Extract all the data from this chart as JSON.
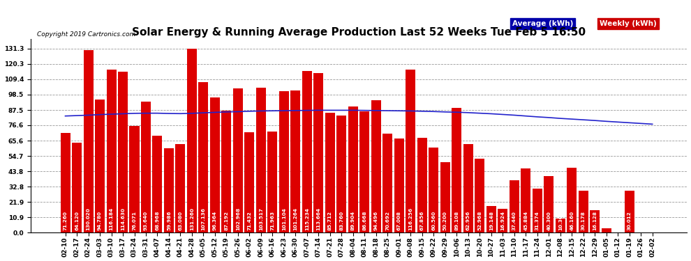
{
  "title": "Solar Energy & Running Average Production Last 52 Weeks Tue Feb 5 16:50",
  "copyright": "Copyright 2019 Cartronics.com",
  "legend_avg": "Average (kWh)",
  "legend_weekly": "Weekly (kWh)",
  "yticks": [
    0.0,
    10.9,
    21.9,
    32.8,
    43.8,
    54.7,
    65.6,
    76.6,
    87.5,
    98.5,
    109.4,
    120.3,
    131.3
  ],
  "ylim": [
    0,
    138
  ],
  "bar_color": "#dd0000",
  "avg_line_color": "#2222cc",
  "background_color": "#ffffff",
  "plot_bg_color": "#ffffff",
  "grid_color": "#999999",
  "title_fontsize": 11,
  "tick_fontsize": 6.5,
  "label_fontsize": 5.2,
  "categories": [
    "02-10",
    "02-17",
    "02-24",
    "03-03",
    "03-10",
    "03-17",
    "03-24",
    "03-31",
    "04-07",
    "04-14",
    "04-21",
    "04-28",
    "05-05",
    "05-12",
    "05-19",
    "05-26",
    "06-02",
    "06-09",
    "06-16",
    "06-23",
    "06-30",
    "07-07",
    "07-14",
    "07-21",
    "07-28",
    "08-04",
    "08-11",
    "08-18",
    "08-25",
    "09-01",
    "09-08",
    "09-15",
    "09-22",
    "09-29",
    "10-06",
    "10-13",
    "10-20",
    "10-27",
    "11-03",
    "11-10",
    "11-17",
    "11-24",
    "12-01",
    "12-08",
    "12-15",
    "12-22",
    "12-29",
    "01-05",
    "01-12",
    "01-19",
    "01-26",
    "02-02"
  ],
  "weekly_values": [
    71.26,
    64.12,
    130.02,
    94.78,
    116.184,
    114.63,
    76.071,
    93.64,
    68.968,
    59.986,
    63.08,
    131.26,
    107.136,
    96.364,
    87.192,
    102.968,
    71.432,
    103.517,
    71.963,
    101.104,
    101.264,
    115.234,
    113.664,
    85.712,
    83.76,
    89.904,
    86.668,
    94.496,
    70.692,
    67.008,
    116.256,
    67.856,
    60.56,
    50.2,
    89.108,
    62.956,
    52.968,
    19.148,
    16.924,
    37.44,
    45.884,
    31.374,
    40.3,
    10.308,
    46.16,
    30.178,
    16.128,
    3.012,
    0.0,
    30.012,
    0.0,
    0.0
  ],
  "avg_values": [
    83.2,
    83.5,
    83.8,
    84.2,
    84.5,
    84.8,
    85.1,
    85.2,
    85.2,
    85.0,
    84.9,
    85.1,
    85.5,
    85.8,
    86.1,
    86.3,
    86.6,
    86.8,
    86.9,
    87.0,
    87.1,
    87.2,
    87.3,
    87.3,
    87.3,
    87.3,
    87.2,
    87.1,
    87.0,
    86.9,
    86.8,
    86.6,
    86.4,
    86.1,
    85.9,
    85.6,
    85.2,
    84.8,
    84.3,
    83.8,
    83.2,
    82.6,
    82.1,
    81.5,
    81.0,
    80.5,
    80.0,
    79.4,
    78.9,
    78.4,
    77.9,
    77.4
  ],
  "legend_avg_bg": "#0000aa",
  "legend_weekly_bg": "#cc0000",
  "legend_text_color": "#ffffff"
}
